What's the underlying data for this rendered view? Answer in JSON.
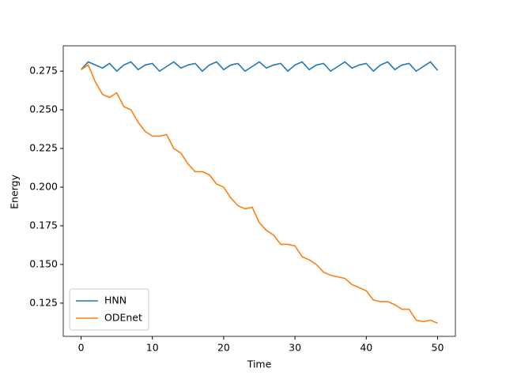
{
  "chart_data": {
    "type": "line",
    "x_label": "Time",
    "y_label": "Energy",
    "x": [
      0,
      1,
      2,
      3,
      4,
      5,
      6,
      7,
      8,
      9,
      10,
      11,
      12,
      13,
      14,
      15,
      16,
      17,
      18,
      19,
      20,
      21,
      22,
      23,
      24,
      25,
      26,
      27,
      28,
      29,
      30,
      31,
      32,
      33,
      34,
      35,
      36,
      37,
      38,
      39,
      40,
      41,
      42,
      43,
      44,
      45,
      46,
      47,
      48,
      49,
      50
    ],
    "series": [
      {
        "name": "HNN",
        "color": "#1f77b4",
        "values": [
          0.276,
          0.281,
          0.279,
          0.277,
          0.28,
          0.275,
          0.279,
          0.281,
          0.276,
          0.279,
          0.28,
          0.275,
          0.278,
          0.281,
          0.277,
          0.279,
          0.28,
          0.275,
          0.279,
          0.281,
          0.276,
          0.279,
          0.28,
          0.275,
          0.278,
          0.281,
          0.277,
          0.279,
          0.28,
          0.275,
          0.279,
          0.281,
          0.276,
          0.279,
          0.28,
          0.275,
          0.278,
          0.281,
          0.277,
          0.279,
          0.28,
          0.275,
          0.279,
          0.281,
          0.276,
          0.279,
          0.28,
          0.275,
          0.278,
          0.281,
          0.2755
        ]
      },
      {
        "name": "ODEnet",
        "color": "#ff7f0e",
        "values": [
          0.276,
          0.279,
          0.268,
          0.26,
          0.258,
          0.261,
          0.252,
          0.25,
          0.242,
          0.236,
          0.233,
          0.233,
          0.234,
          0.225,
          0.222,
          0.215,
          0.21,
          0.21,
          0.208,
          0.202,
          0.2,
          0.193,
          0.188,
          0.186,
          0.187,
          0.177,
          0.172,
          0.169,
          0.163,
          0.163,
          0.162,
          0.155,
          0.153,
          0.15,
          0.145,
          0.143,
          0.142,
          0.141,
          0.137,
          0.135,
          0.133,
          0.127,
          0.126,
          0.126,
          0.124,
          0.121,
          0.121,
          0.114,
          0.113,
          0.114,
          0.112
        ]
      }
    ],
    "xlim": [
      -2.5,
      52.5
    ],
    "xticks": [
      0,
      10,
      20,
      30,
      40,
      50
    ],
    "ylim": [
      0.1035,
      0.2914
    ],
    "yticks": [
      0.125,
      {
        "value": 0.15,
        "label": "0.150"
      },
      0.175,
      {
        "value": 0.2,
        "label": "0.200"
      },
      0.225,
      {
        "value": 0.25,
        "label": "0.250"
      },
      0.275
    ],
    "legend": "lower left"
  }
}
